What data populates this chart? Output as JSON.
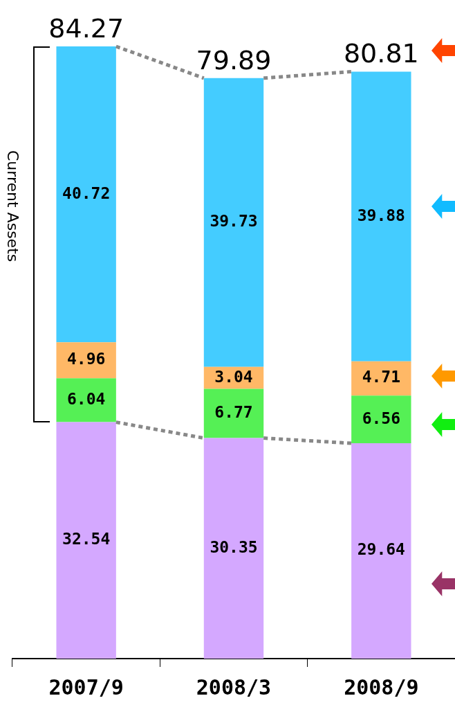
{
  "chart_data": {
    "type": "bar",
    "stacked": true,
    "categories": [
      "2007/9",
      "2008/3",
      "2008/9"
    ],
    "series": [
      {
        "values": [
          32.54,
          30.35,
          29.64
        ],
        "color": "#d4a8ff"
      },
      {
        "values": [
          6.04,
          6.77,
          6.56
        ],
        "color": "#55f055"
      },
      {
        "values": [
          4.96,
          3.04,
          4.71
        ],
        "color": "#ffb866"
      },
      {
        "values": [
          40.72,
          39.73,
          39.88
        ],
        "color": "#44ccff"
      }
    ],
    "data_labels": true,
    "totals": [
      "84.27",
      "79.89",
      "80.81"
    ],
    "annotations": [
      "Current Assets"
    ]
  }
}
